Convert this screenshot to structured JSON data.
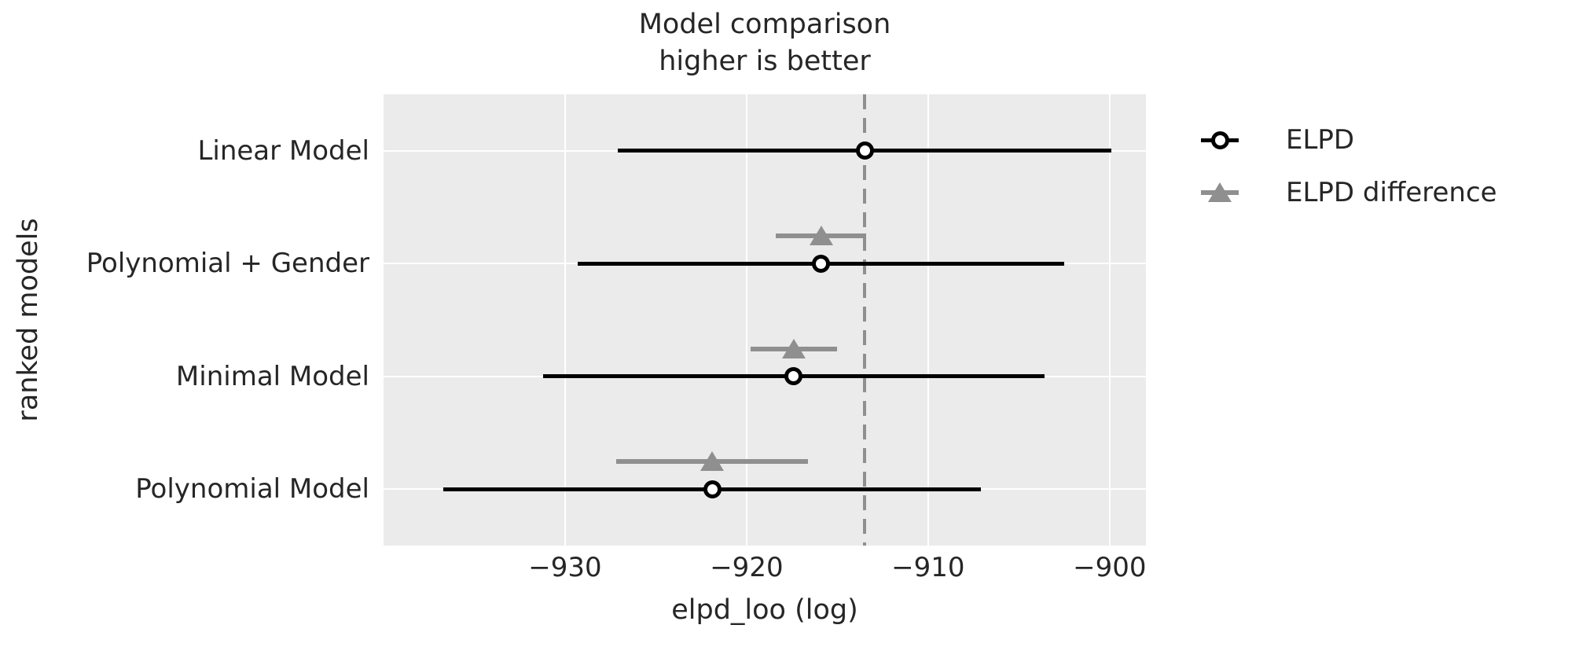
{
  "chart_data": {
    "type": "errorbar",
    "title": "Model comparison\nhigher is better",
    "title_lines": [
      "Model comparison",
      "higher is better"
    ],
    "xlabel": "elpd_loo (log)",
    "ylabel": "ranked models",
    "xlim": [
      -940,
      -898
    ],
    "x_ticks": [
      -930,
      -920,
      -910,
      -900
    ],
    "x_tick_labels": [
      "−930",
      "−920",
      "−910",
      "−900"
    ],
    "grid": true,
    "legend_position": "outside upper right",
    "legend": [
      {
        "label": "ELPD",
        "marker": "open-circle",
        "color": "#000000"
      },
      {
        "label": "ELPD difference",
        "marker": "triangle",
        "color": "#8f8f8f"
      }
    ],
    "best_model_vline": -913.5,
    "models": [
      {
        "name": "Linear Model",
        "rank": 0,
        "elpd": -913.5,
        "se": 13.6,
        "elpd_diff_se": null
      },
      {
        "name": "Polynomial + Gender",
        "rank": 1,
        "elpd": -915.9,
        "se": 13.4,
        "elpd_diff_se": 2.5
      },
      {
        "name": "Minimal Model",
        "rank": 2,
        "elpd": -917.4,
        "se": 13.8,
        "elpd_diff_se": 2.4
      },
      {
        "name": "Polynomial Model",
        "rank": 3,
        "elpd": -921.9,
        "se": 14.8,
        "elpd_diff_se": 5.3
      }
    ],
    "colors": {
      "plot_bg": "#ebebeb",
      "grid": "#ffffff",
      "elpd": "#000000",
      "elpd_diff": "#8f8f8f",
      "vline": "#8f8f8f",
      "text": "#262626"
    }
  }
}
